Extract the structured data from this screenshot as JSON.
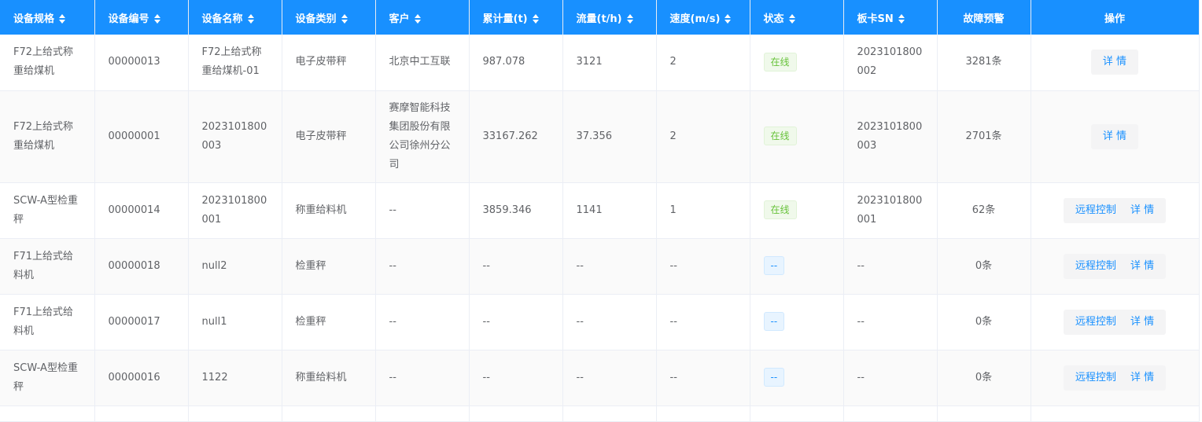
{
  "columns": [
    {
      "label": "设备规格",
      "sortable": true
    },
    {
      "label": "设备编号",
      "sortable": true
    },
    {
      "label": "设备名称",
      "sortable": true
    },
    {
      "label": "设备类别",
      "sortable": true
    },
    {
      "label": "客户",
      "sortable": true
    },
    {
      "label": "累计量(t)",
      "sortable": true
    },
    {
      "label": "流量(t/h)",
      "sortable": true
    },
    {
      "label": "速度(m/s)",
      "sortable": true
    },
    {
      "label": "状态",
      "sortable": true
    },
    {
      "label": "板卡SN",
      "sortable": true
    },
    {
      "label": "故障预警",
      "sortable": false
    },
    {
      "label": "操作",
      "sortable": false
    }
  ],
  "rows": [
    {
      "spec": "F72上给式称重给煤机",
      "code": "00000013",
      "name": "F72上给式称重给煤机-01",
      "category": "电子皮带秤",
      "customer": "北京中工互联",
      "total": "987.078",
      "flow": "3121",
      "speed": "2",
      "status": "在线",
      "online": true,
      "sn": "2023101800002",
      "alerts": "3281条",
      "actions": [
        "详 情"
      ]
    },
    {
      "spec": "F72上给式称重给煤机",
      "code": "00000001",
      "name": "2023101800003",
      "category": "电子皮带秤",
      "customer": "赛摩智能科技集团股份有限公司徐州分公司",
      "total": "33167.262",
      "flow": "37.356",
      "speed": "2",
      "status": "在线",
      "online": true,
      "sn": "2023101800003",
      "alerts": "2701条",
      "actions": [
        "详 情"
      ]
    },
    {
      "spec": "SCW-A型检重秤",
      "code": "00000014",
      "name": "2023101800001",
      "category": "称重给料机",
      "customer": "--",
      "total": "3859.346",
      "flow": "1141",
      "speed": "1",
      "status": "在线",
      "online": true,
      "sn": "2023101800001",
      "alerts": "62条",
      "actions": [
        "远程控制",
        "详 情"
      ]
    },
    {
      "spec": "F71上给式给料机",
      "code": "00000018",
      "name": "null2",
      "category": "检重秤",
      "customer": "--",
      "total": "--",
      "flow": "--",
      "speed": "--",
      "status": "--",
      "online": false,
      "sn": "--",
      "alerts": "0条",
      "actions": [
        "远程控制",
        "详 情"
      ]
    },
    {
      "spec": "F71上给式给料机",
      "code": "00000017",
      "name": "null1",
      "category": "检重秤",
      "customer": "--",
      "total": "--",
      "flow": "--",
      "speed": "--",
      "status": "--",
      "online": false,
      "sn": "--",
      "alerts": "0条",
      "actions": [
        "远程控制",
        "详 情"
      ]
    },
    {
      "spec": "SCW-A型检重秤",
      "code": "00000016",
      "name": "1122",
      "category": "称重给料机",
      "customer": "--",
      "total": "--",
      "flow": "--",
      "speed": "--",
      "status": "--",
      "online": false,
      "sn": "--",
      "alerts": "0条",
      "actions": [
        "远程控制",
        "详 情"
      ]
    }
  ],
  "colors": {
    "header": "#1890ff",
    "online": "#67c23a",
    "link": "#1890ff"
  }
}
